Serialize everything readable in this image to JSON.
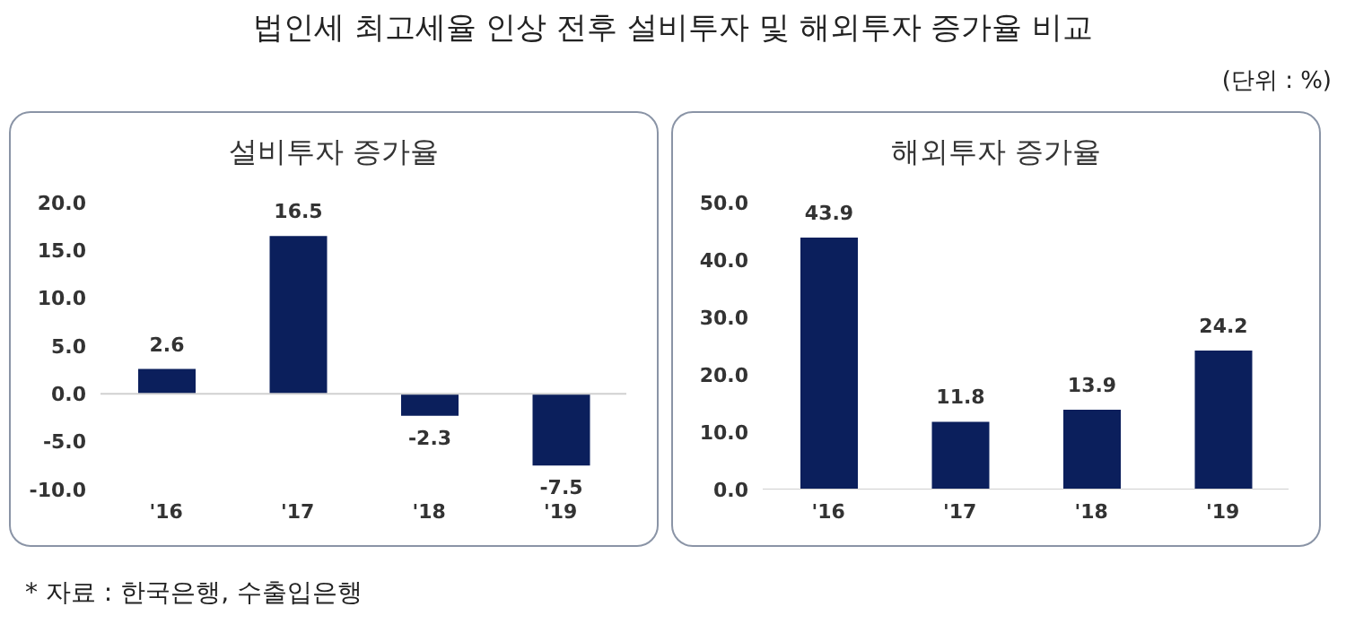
{
  "chart_data": [
    {
      "type": "bar",
      "title": "설비투자 증가율",
      "categories": [
        "'16",
        "'17",
        "'18",
        "'19"
      ],
      "values": [
        2.6,
        16.5,
        -2.3,
        -7.5
      ],
      "color": "#0b1f5c",
      "data_labels": true,
      "ylim": [
        -10,
        20
      ],
      "yticks": [
        {
          "value": -10,
          "label": "-10.0"
        },
        {
          "value": -5,
          "label": "-5.0"
        },
        {
          "value": 0,
          "label": "0.0"
        },
        {
          "value": 5,
          "label": "5.0"
        },
        {
          "value": 10,
          "label": "10.0"
        },
        {
          "value": 15,
          "label": "15.0"
        },
        {
          "value": 20,
          "label": "20.0"
        }
      ],
      "annotations": [
        "법인세 최고세율 인상 전후 설비투자 및 해외투자 증가율 비교",
        "(단위 : %)"
      ]
    },
    {
      "type": "bar",
      "title": "해외투자 증가율",
      "categories": [
        "'16",
        "'17",
        "'18",
        "'19"
      ],
      "values": [
        43.9,
        11.8,
        13.9,
        24.2
      ],
      "color": "#0b1f5c",
      "data_labels": true,
      "ylim": [
        0,
        50
      ],
      "yticks": [
        {
          "value": 0,
          "label": "0.0"
        },
        {
          "value": 10,
          "label": "10.0"
        },
        {
          "value": 20,
          "label": "20.0"
        },
        {
          "value": 30,
          "label": "30.0"
        },
        {
          "value": 40,
          "label": "40.0"
        },
        {
          "value": 50,
          "label": "50.0"
        }
      ],
      "annotations": [
        "* 자료 : 한국은행, 수출입은행"
      ]
    }
  ]
}
